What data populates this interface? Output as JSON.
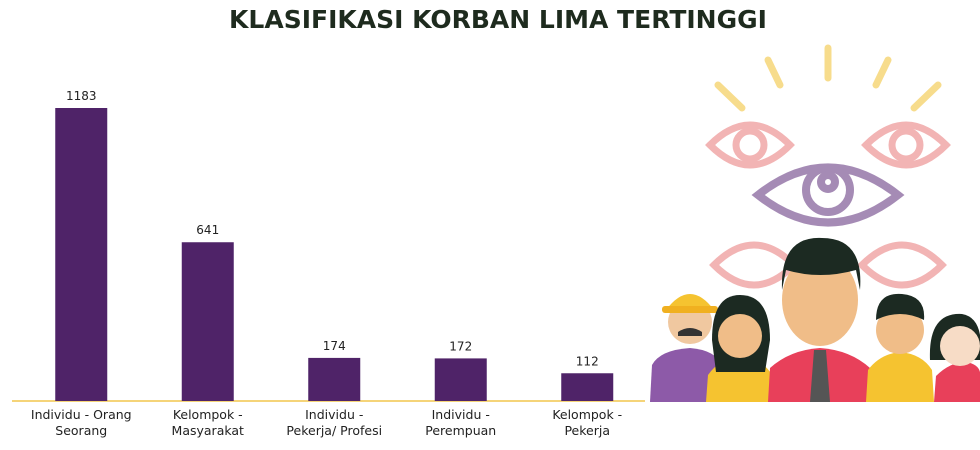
{
  "chart_data": {
    "type": "bar",
    "title": "KLASIFIKASI KORBAN LIMA TERTINGGI",
    "categories": [
      "Individu - Orang Seorang",
      "Kelompok - Masyarakat",
      "Individu - Pekerja/ Profesi",
      "Individu - Perempuan",
      "Kelompok - Pekerja"
    ],
    "values": [
      1183,
      641,
      174,
      172,
      112
    ],
    "color": "#4f2368"
  }
}
